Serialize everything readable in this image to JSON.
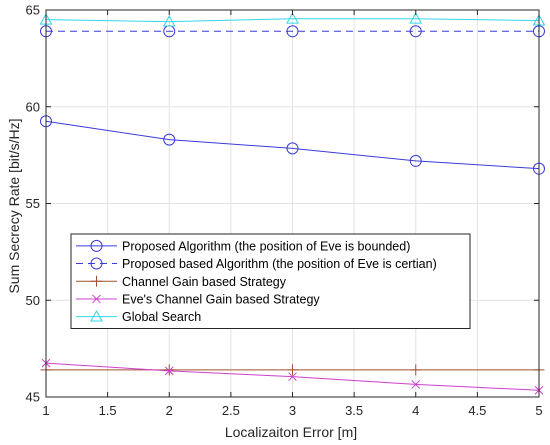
{
  "chart_data": {
    "type": "line",
    "xlabel": "Localizaiton Error [m]",
    "ylabel": "Sum Secrecy Rate [bit/s/Hz]",
    "xlim": [
      1,
      5
    ],
    "ylim": [
      45,
      65
    ],
    "xticks": [
      1,
      1.5,
      2,
      2.5,
      3,
      3.5,
      4,
      4.5,
      5
    ],
    "yticks": [
      45,
      50,
      55,
      60,
      65
    ],
    "grid": true,
    "legend_position": "middle-left",
    "x": [
      1,
      2,
      3,
      4,
      5
    ],
    "series": [
      {
        "name": "Proposed Algorithm (the position of Eve is bounded)",
        "values": [
          59.25,
          58.3,
          57.85,
          57.2,
          56.8
        ],
        "color": "#3b3bd9",
        "line_style": "solid",
        "marker": "circle"
      },
      {
        "name": "Proposed based Algorithm (the position of Eve is certian)",
        "values": [
          63.9,
          63.9,
          63.9,
          63.9,
          63.9
        ],
        "color": "#3b3bd9",
        "line_style": "dashed",
        "marker": "circle"
      },
      {
        "name": "Channel Gain based Strategy",
        "values": [
          46.4,
          46.4,
          46.4,
          46.4,
          46.4
        ],
        "color": "#a0522d",
        "line_style": "solid",
        "marker": "plus"
      },
      {
        "name": "Eve's Channel Gain based Strategy",
        "values": [
          46.75,
          46.35,
          46.05,
          45.65,
          45.35
        ],
        "color": "#d040d0",
        "line_style": "solid",
        "marker": "x"
      },
      {
        "name": "Global Search",
        "values": [
          64.5,
          64.4,
          64.55,
          64.55,
          64.45
        ],
        "color": "#33d6e6",
        "line_style": "solid",
        "marker": "triangle"
      }
    ]
  }
}
